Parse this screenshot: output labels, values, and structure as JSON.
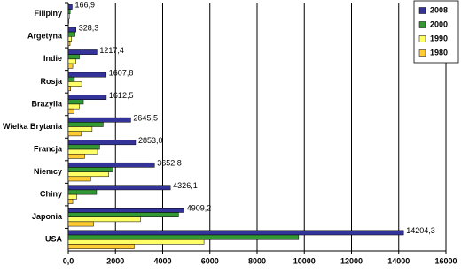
{
  "chart_data": {
    "type": "hbar",
    "categories": [
      "Filipiny",
      "Argetyna",
      "Indie",
      "Rosja",
      "Brazylia",
      "Wielka Brytania",
      "Francja",
      "Niemcy",
      "Chiny",
      "Japonia",
      "USA"
    ],
    "series": [
      {
        "name": "2008",
        "color": "#333399",
        "values": [
          166.9,
          328.3,
          1217.4,
          1607.8,
          1612.5,
          2645.5,
          2853.0,
          3652.8,
          4326.1,
          4909.2,
          14204.3
        ],
        "value_labels": [
          "166,9",
          "328,3",
          "1217,4",
          "1607,8",
          "1612,5",
          "2645,5",
          "2853,0",
          "3652,8",
          "4326,1",
          "4909,2",
          "14204,3"
        ]
      },
      {
        "name": "2000",
        "color": "#339933",
        "values": [
          80,
          285,
          470,
          260,
          640,
          1480,
          1330,
          1900,
          1200,
          4670,
          9760
        ]
      },
      {
        "name": "1990",
        "color": "#ffff66",
        "values": [
          45,
          140,
          320,
          570,
          460,
          1010,
          1240,
          1710,
          360,
          3060,
          5750
        ]
      },
      {
        "name": "1980",
        "color": "#ffcc33",
        "values": [
          30,
          75,
          190,
          100,
          240,
          540,
          690,
          950,
          190,
          1070,
          2790
        ]
      }
    ],
    "xlim": [
      0,
      16000
    ],
    "xticks": [
      {
        "value": 0,
        "label": "0,0"
      },
      2000,
      4000,
      6000,
      8000,
      10000,
      12000,
      14000,
      16000
    ],
    "grid": true,
    "legend": "upper right"
  }
}
